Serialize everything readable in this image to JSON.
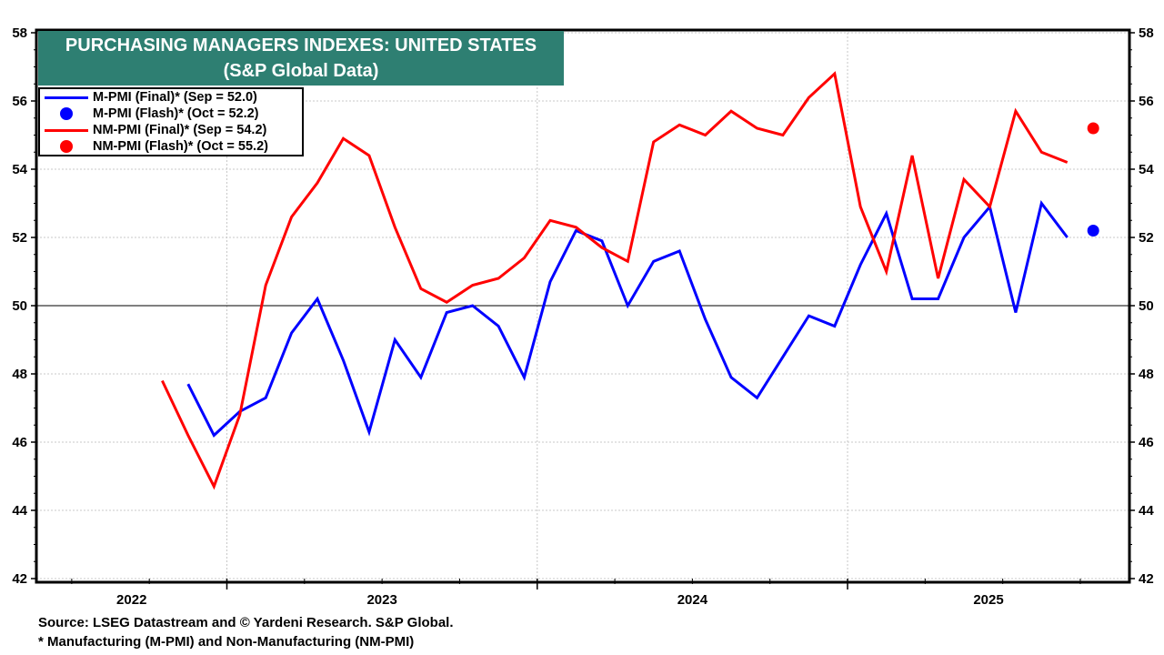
{
  "chart_data": {
    "type": "line",
    "title": "PURCHASING MANAGERS INDEXES: UNITED STATES",
    "subtitle": "(S&P Global Data)",
    "ylim": [
      42,
      58
    ],
    "yticks": [
      42,
      44,
      46,
      48,
      50,
      52,
      54,
      56,
      58
    ],
    "xlim": [
      "2022-05-20",
      "2025-11-28"
    ],
    "xtick_labels": [
      "2022",
      "2023",
      "2024",
      "2025"
    ],
    "reference_line": 50,
    "grid": true,
    "legend_placement": "top-left",
    "series": [
      {
        "name": "M-PMI (Final)* (Sep = 52.0)",
        "color": "#0000ff",
        "kind": "line",
        "x": [
          "2022-11",
          "2022-12",
          "2023-01",
          "2023-02",
          "2023-03",
          "2023-04",
          "2023-05",
          "2023-06",
          "2023-07",
          "2023-08",
          "2023-09",
          "2023-10",
          "2023-11",
          "2023-12",
          "2024-01",
          "2024-02",
          "2024-03",
          "2024-04",
          "2024-05",
          "2024-06",
          "2024-07",
          "2024-08",
          "2024-09",
          "2024-10",
          "2024-11",
          "2024-12",
          "2025-01",
          "2025-02",
          "2025-03",
          "2025-04",
          "2025-05",
          "2025-06",
          "2025-07",
          "2025-08",
          "2025-09"
        ],
        "values": [
          47.7,
          46.2,
          46.9,
          47.3,
          49.2,
          50.2,
          48.4,
          46.3,
          49.0,
          47.9,
          49.8,
          50.0,
          49.4,
          47.9,
          50.7,
          52.2,
          51.9,
          50.0,
          51.3,
          51.6,
          49.6,
          47.9,
          47.3,
          48.5,
          49.7,
          49.4,
          51.2,
          52.7,
          50.2,
          50.2,
          52.0,
          52.9,
          49.8,
          53.0,
          52.0
        ]
      },
      {
        "name": "M-PMI (Flash)* (Oct = 52.2)",
        "color": "#0000ff",
        "kind": "dot",
        "x": [
          "2025-10"
        ],
        "values": [
          52.2
        ]
      },
      {
        "name": "NM-PMI (Final)* (Sep = 54.2)",
        "color": "#ff0000",
        "kind": "line",
        "x": [
          "2022-10",
          "2022-11",
          "2022-12",
          "2023-01",
          "2023-02",
          "2023-03",
          "2023-04",
          "2023-05",
          "2023-06",
          "2023-07",
          "2023-08",
          "2023-09",
          "2023-10",
          "2023-11",
          "2023-12",
          "2024-01",
          "2024-02",
          "2024-03",
          "2024-04",
          "2024-05",
          "2024-06",
          "2024-07",
          "2024-08",
          "2024-09",
          "2024-10",
          "2024-11",
          "2024-12",
          "2025-01",
          "2025-02",
          "2025-03",
          "2025-04",
          "2025-05",
          "2025-06",
          "2025-07",
          "2025-08",
          "2025-09"
        ],
        "values": [
          47.8,
          46.2,
          44.7,
          46.8,
          50.6,
          52.6,
          53.6,
          54.9,
          54.4,
          52.3,
          50.5,
          50.1,
          50.6,
          50.8,
          51.4,
          52.5,
          52.3,
          51.7,
          51.3,
          54.8,
          55.3,
          55.0,
          55.7,
          55.2,
          55.0,
          56.1,
          56.8,
          52.9,
          51.0,
          54.4,
          50.8,
          53.7,
          52.9,
          55.7,
          54.5,
          54.2
        ]
      },
      {
        "name": "NM-PMI (Flash)* (Oct = 55.2)",
        "color": "#ff0000",
        "kind": "dot",
        "x": [
          "2025-10"
        ],
        "values": [
          55.2
        ]
      }
    ]
  },
  "footer": {
    "source": "Source: LSEG Datastream and © Yardeni Research. S&P Global.",
    "note": "* Manufacturing (M-PMI) and Non-Manufacturing (NM-PMI)"
  },
  "colors": {
    "title_bg": "#2e7f72",
    "m_pmi": "#0000ff",
    "nm_pmi": "#ff0000"
  }
}
